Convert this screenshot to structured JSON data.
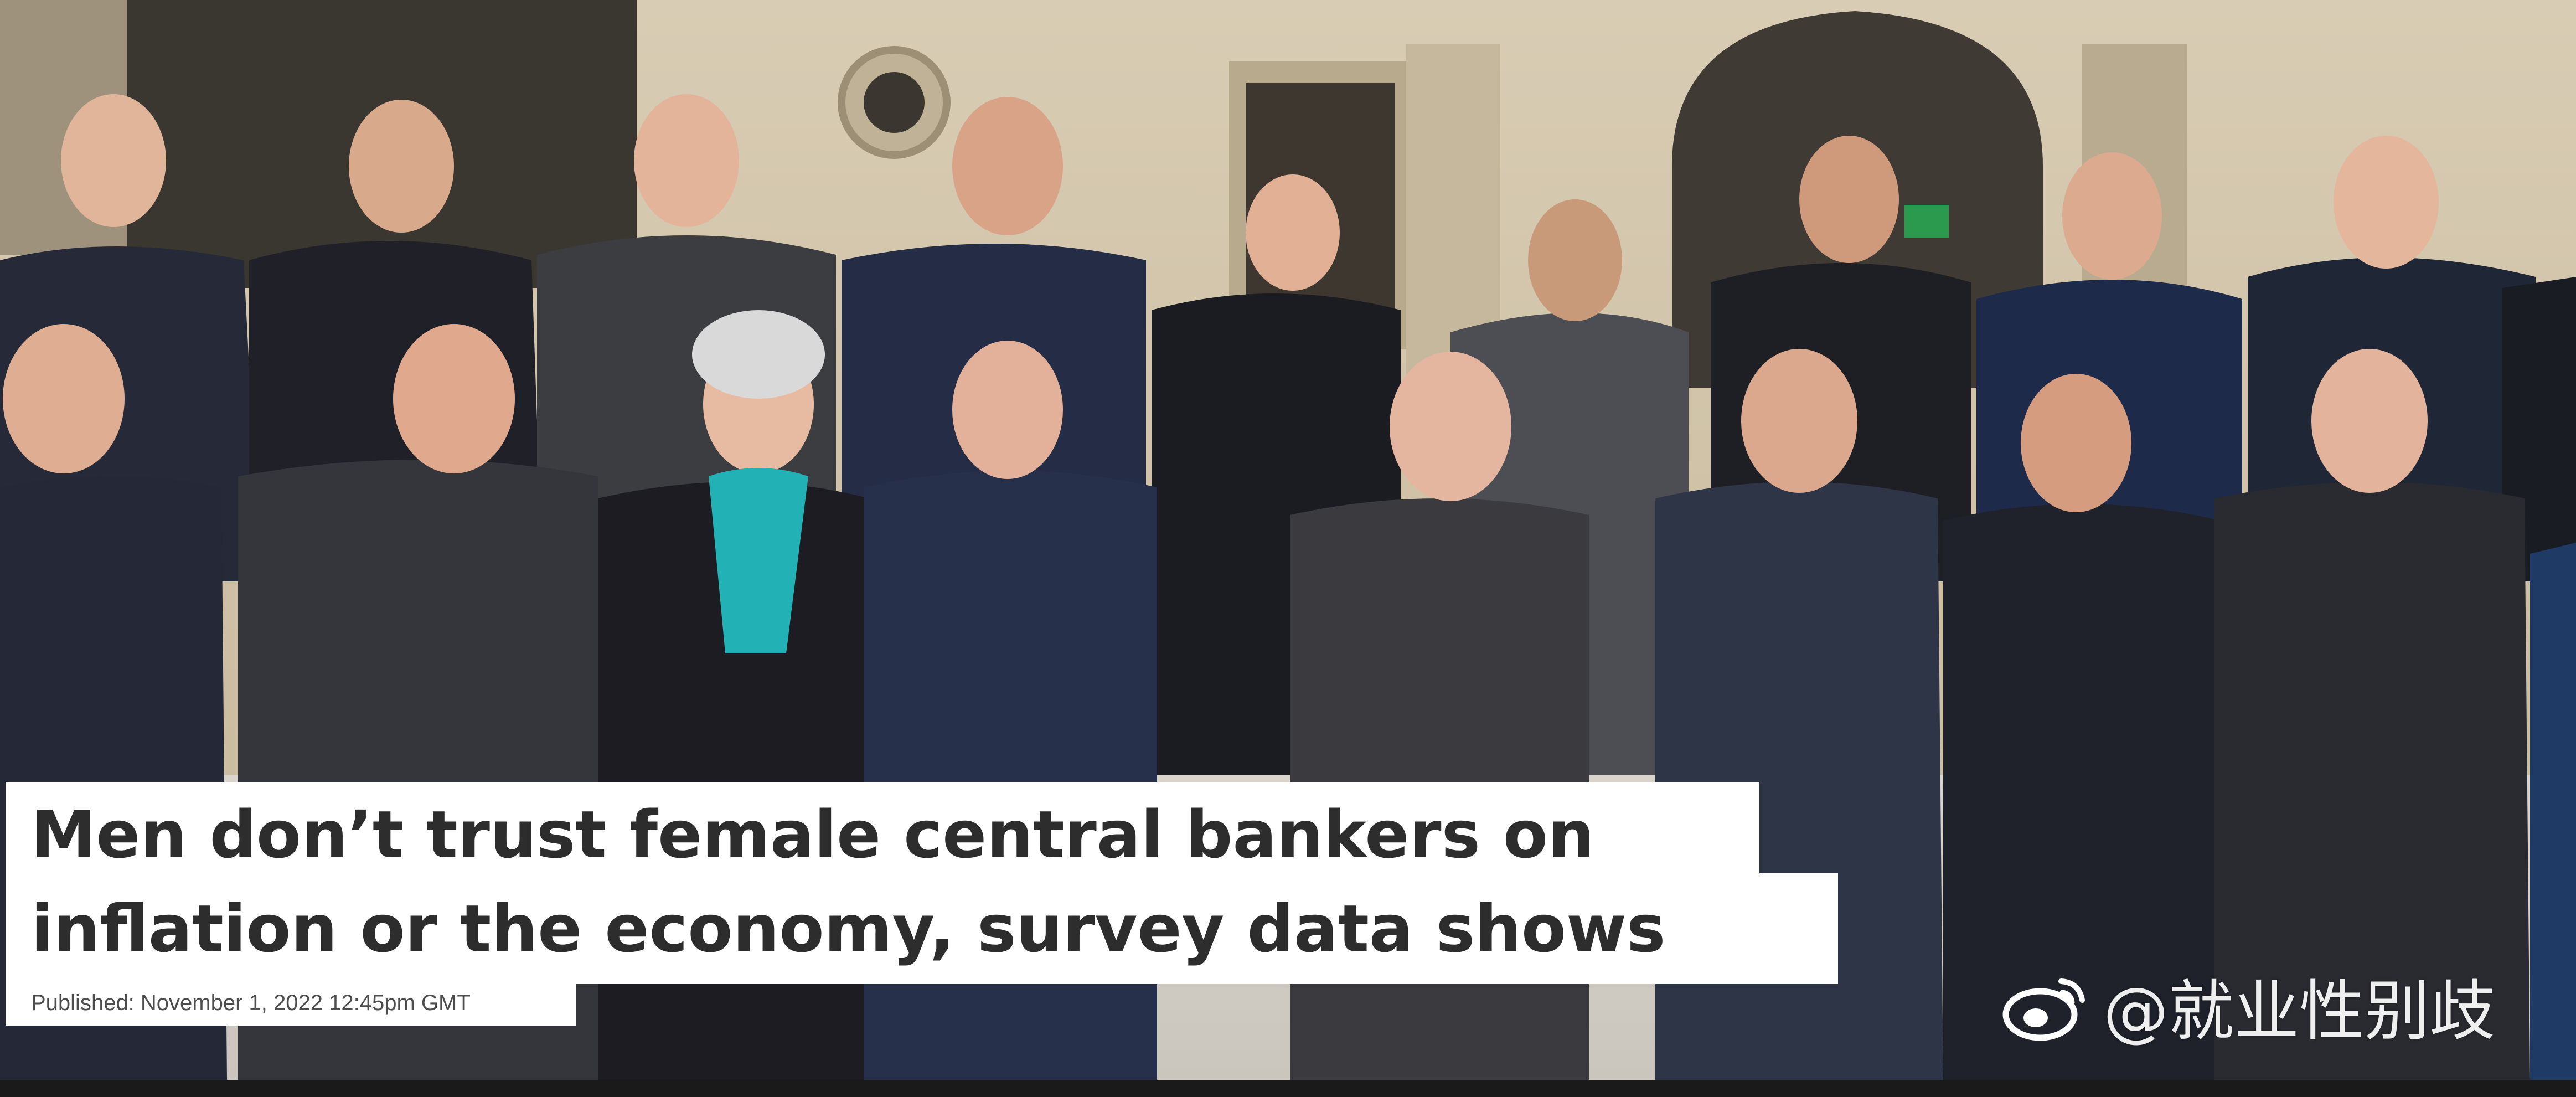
{
  "headline": {
    "line1": "Men don’t trust female central bankers on",
    "line2": "inflation or the economy, survey data shows"
  },
  "published": "Published: November 1, 2022 12:45pm GMT",
  "watermark": {
    "text": "@就业性别歧",
    "icon": "weibo-logo-icon"
  },
  "colors": {
    "caption_bg": "#ffffff",
    "caption_text": "#2d2d2d",
    "published_text": "#4d4d4d",
    "teal_scarf": "#22b2b6",
    "stone_wall": "#cdbfa6"
  }
}
